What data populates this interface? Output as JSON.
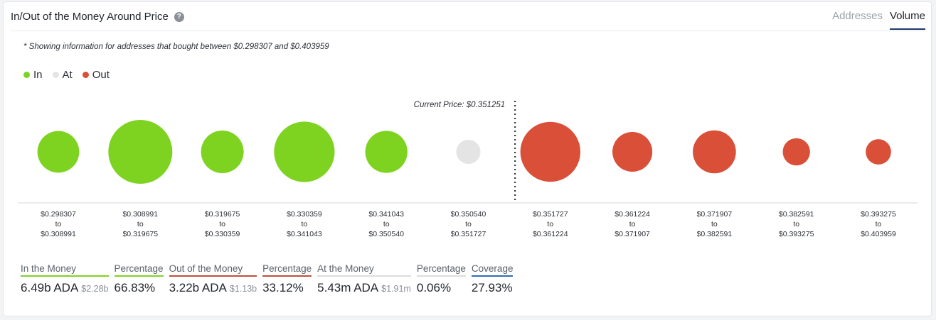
{
  "header": {
    "title": "In/Out of the Money Around Price",
    "tabs": [
      {
        "label": "Addresses",
        "active": false
      },
      {
        "label": "Volume",
        "active": true
      }
    ],
    "note": "* Showing information for addresses that bought between $0.298307 and $0.403959"
  },
  "legend": [
    {
      "label": "In",
      "color": "#7ed321"
    },
    {
      "label": "At",
      "color": "#e4e4e4"
    },
    {
      "label": "Out",
      "color": "#d94f37"
    }
  ],
  "chart_data": {
    "type": "scatter",
    "current_price_label": "Current Price: $0.351251",
    "current_price": 0.351251,
    "colors": {
      "in": "#7ed321",
      "at": "#e4e4e4",
      "out": "#d94f37"
    },
    "bins": [
      {
        "from": "$0.298307",
        "to": "$0.308991",
        "status": "in",
        "relative_volume": 0.32
      },
      {
        "from": "$0.308991",
        "to": "$0.319675",
        "status": "in",
        "relative_volume": 1.0
      },
      {
        "from": "$0.319675",
        "to": "$0.330359",
        "status": "in",
        "relative_volume": 0.34
      },
      {
        "from": "$0.330359",
        "to": "$0.341043",
        "status": "in",
        "relative_volume": 0.87
      },
      {
        "from": "$0.341043",
        "to": "$0.350540",
        "status": "in",
        "relative_volume": 0.33
      },
      {
        "from": "$0.350540",
        "to": "$0.351727",
        "status": "at",
        "relative_volume": 0.05
      },
      {
        "from": "$0.351727",
        "to": "$0.361224",
        "status": "out",
        "relative_volume": 0.85
      },
      {
        "from": "$0.361224",
        "to": "$0.371907",
        "status": "out",
        "relative_volume": 0.28
      },
      {
        "from": "$0.371907",
        "to": "$0.382591",
        "status": "out",
        "relative_volume": 0.35
      },
      {
        "from": "$0.382591",
        "to": "$0.393275",
        "status": "out",
        "relative_volume": 0.08
      },
      {
        "from": "$0.393275",
        "to": "$0.403959",
        "status": "out",
        "relative_volume": 0.06
      }
    ],
    "to_word": "to"
  },
  "stats": [
    {
      "label": "In the Money",
      "value": "6.49b ADA",
      "sub": "$2.28b",
      "color": "#7ed321"
    },
    {
      "label": "Percentage",
      "value": "66.83%",
      "sub": "",
      "color": "#7ed321"
    },
    {
      "label": "Out of the Money",
      "value": "3.22b ADA",
      "sub": "$1.13b",
      "color": "#c0503a"
    },
    {
      "label": "Percentage",
      "value": "33.12%",
      "sub": "",
      "color": "#c0503a"
    },
    {
      "label": "At the Money",
      "value": "5.43m ADA",
      "sub": "$1.91m",
      "color": "#dcdcdc"
    },
    {
      "label": "Percentage",
      "value": "0.06%",
      "sub": "",
      "color": "#dcdcdc"
    },
    {
      "label": "Coverage",
      "value": "27.93%",
      "sub": "",
      "color": "#2f6eb5"
    }
  ]
}
